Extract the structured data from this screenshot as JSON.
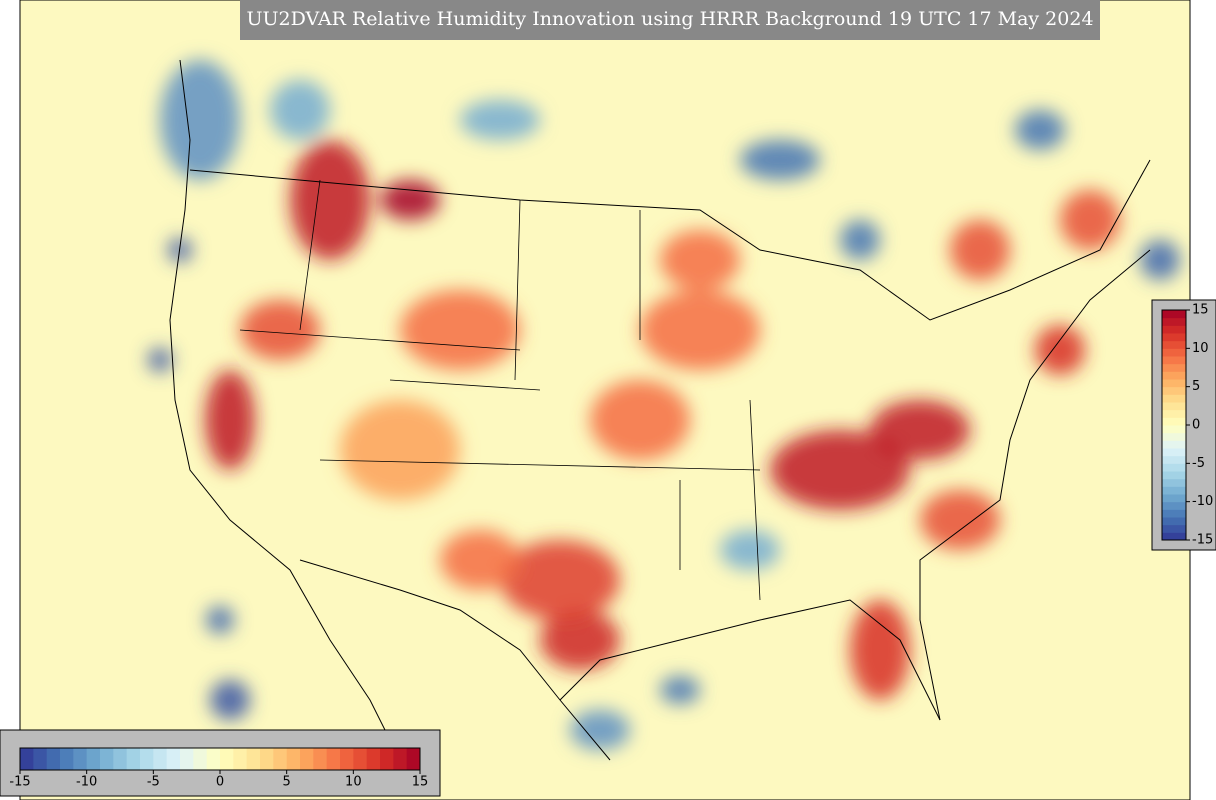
{
  "title": "UU2DVAR Relative Humidity Innovation using HRRR Background 19 UTC 17 May 2024",
  "colorbars": [
    {
      "orientation": "horizontal",
      "lim": [
        -15,
        15
      ],
      "ticks": [
        -15,
        -10,
        -5,
        0,
        5,
        10,
        15
      ]
    },
    {
      "orientation": "vertical",
      "lim": [
        -15,
        15
      ],
      "ticks": [
        -15,
        -10,
        -5,
        0,
        5,
        10,
        15
      ]
    }
  ]
}
